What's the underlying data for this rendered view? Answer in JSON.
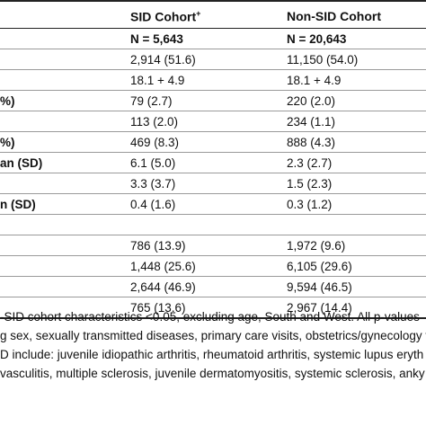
{
  "header": {
    "sid_cohort": "SID Cohort",
    "sid_sup": "+",
    "non_sid_cohort": "Non-SID Cohort"
  },
  "rows": [
    {
      "label": "",
      "sid": "N = 5,643",
      "non": "N = 20,643",
      "bold": true
    },
    {
      "label": "",
      "sid": "2,914 (51.6)",
      "non": "11,150 (54.0)"
    },
    {
      "label": "",
      "sid": "18.1 + 4.9",
      "non": "18.1 + 4.9"
    },
    {
      "label": "%)",
      "sid": "79 (2.7)",
      "non": "220 (2.0)"
    },
    {
      "label": "",
      "sid": "113 (2.0)",
      "non": "234 (1.1)"
    },
    {
      "label": "%)",
      "sid": "469 (8.3)",
      "non": "888 (4.3)"
    },
    {
      "label": "an (SD)",
      "sid": "6.1 (5.0)",
      "non": "2.3 (2.7)"
    },
    {
      "label": "",
      "sid": "3.3 (3.7)",
      "non": "1.5 (2.3)"
    },
    {
      "label": "n (SD)",
      "sid": "0.4 (1.6)",
      "non": "0.3 (1.2)"
    },
    {
      "label": "",
      "sid": "",
      "non": ""
    },
    {
      "label": "",
      "sid": "786 (13.9)",
      "non": "1,972 (9.6)"
    },
    {
      "label": "",
      "sid": "1,448 (25.6)",
      "non": "6,105 (29.6)"
    },
    {
      "label": "",
      "sid": "2,644 (46.9)",
      "non": "9,594 (46.5)"
    },
    {
      "label": "",
      "sid": "765 (13.6)",
      "non": "2,967 (14.4)"
    }
  ],
  "notes": [
    "-SID cohort characteristics <0.05, excluding age, South and West. All p-values",
    "g sex, sexually transmitted diseases, primary care visits, obstetrics/gynecology v",
    "D include: juvenile idiopathic arthritis, rheumatoid arthritis, systemic lupus eryth",
    "vasculitis, multiple sclerosis, juvenile dermatomyositis, systemic sclerosis, anky"
  ]
}
